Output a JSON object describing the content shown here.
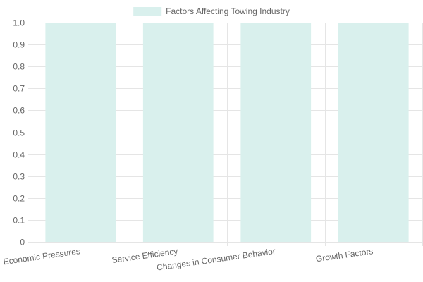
{
  "chart_data": {
    "type": "bar",
    "categories": [
      "Economic Pressures",
      "Service Efficiency",
      "Changes in Consumer Behavior",
      "Growth Factors"
    ],
    "series": [
      {
        "name": "Factors Affecting Towing Industry",
        "values": [
          1,
          1,
          1,
          1
        ]
      }
    ],
    "ylim": [
      0,
      1
    ],
    "yticks": [
      "0",
      "0.1",
      "0.2",
      "0.3",
      "0.4",
      "0.5",
      "0.6",
      "0.7",
      "0.8",
      "0.9",
      "1.0"
    ],
    "grid": true,
    "legend_position": "top",
    "colors": {
      "bar_fill": "#d9f0ed",
      "grid": "#e5e5e5",
      "text": "#666666"
    }
  }
}
